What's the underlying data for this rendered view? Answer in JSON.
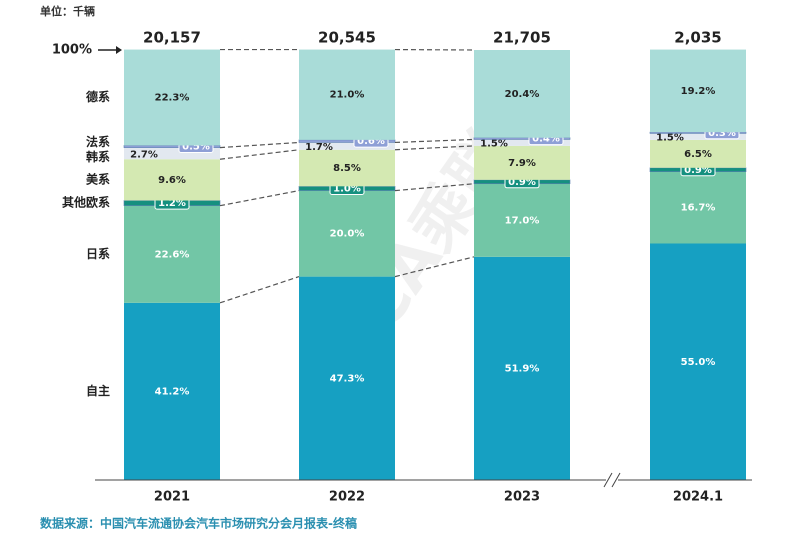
{
  "chart_data": {
    "type": "stacked_bar_100",
    "unit": "单位：千辆",
    "source": "数据来源：中国汽车流通协会汽车市场研究分会月报表-终稿",
    "watermark": "CPCA乘联会",
    "categories": [
      "2021",
      "2022",
      "2023",
      "2024.1"
    ],
    "totals": [
      20157,
      20545,
      21705,
      2035
    ],
    "total_labels": [
      "20,157",
      "20,545",
      "21,705",
      "2,035"
    ],
    "ylim": [
      0,
      100
    ],
    "yticks": [
      {
        "value": 100,
        "label": "100%"
      }
    ],
    "series": [
      {
        "name": "自主",
        "color": "#16a0c2",
        "values": [
          41.2,
          47.3,
          51.9,
          55.0
        ],
        "value_labels": [
          "41.2%",
          "47.3%",
          "51.9%",
          "55.0%"
        ]
      },
      {
        "name": "日系",
        "color": "#72c6a6",
        "values": [
          22.6,
          20.0,
          17.0,
          16.7
        ],
        "value_labels": [
          "22.6%",
          "20.0%",
          "17.0%",
          "16.7%"
        ]
      },
      {
        "name": "其他欧系",
        "color": "#15907f",
        "values": [
          1.2,
          1.0,
          0.9,
          0.9
        ],
        "value_labels": [
          "1.2%",
          "1.0%",
          "0.9%",
          "0.9%"
        ]
      },
      {
        "name": "美系",
        "color": "#d4e9b2",
        "values": [
          9.6,
          8.5,
          7.9,
          6.5
        ],
        "value_labels": [
          "9.6%",
          "8.5%",
          "7.9%",
          "6.5%"
        ]
      },
      {
        "name": "韩系",
        "color": "#e2e8f0",
        "values": [
          2.7,
          1.7,
          1.5,
          1.5
        ],
        "value_labels": [
          "2.7%",
          "1.7%",
          "1.5%",
          "1.5%"
        ]
      },
      {
        "name": "法系",
        "color": "#8e9fd6",
        "values": [
          0.5,
          0.6,
          0.4,
          0.3
        ],
        "value_labels": [
          "0.5%",
          "0.6%",
          "0.4%",
          "0.3%"
        ]
      },
      {
        "name": "德系",
        "color": "#a9dcd8",
        "values": [
          22.3,
          21.0,
          20.4,
          19.2
        ],
        "value_labels": [
          "22.3%",
          "21.0%",
          "20.4%",
          "19.2%"
        ]
      }
    ]
  }
}
